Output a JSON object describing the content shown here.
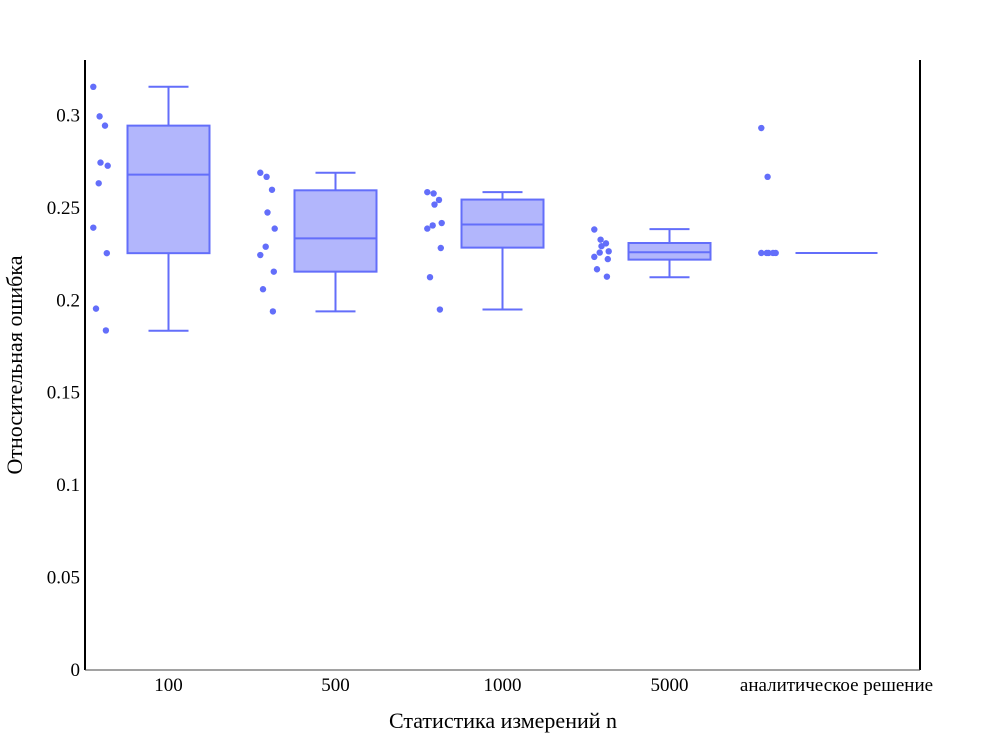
{
  "chart_data": {
    "type": "box",
    "title": "",
    "xlabel": "Статистика измерений n",
    "ylabel": "Относительная ошибка",
    "ylim": [
      0,
      0.33
    ],
    "yticks": [
      0,
      0.05,
      0.1,
      0.15,
      0.2,
      0.25,
      0.3
    ],
    "ytick_labels": [
      "0",
      "0.05",
      "0.1",
      "0.15",
      "0.2",
      "0.25",
      "0.3"
    ],
    "grid": false,
    "legend": "none",
    "box_color": "#636efa",
    "box_fill": "#b2b6fc",
    "categories": [
      "100",
      "500",
      "1000",
      "5000",
      "аналитическое решение"
    ],
    "boxes": [
      {
        "category": "100",
        "min": 0.1835,
        "q1": 0.2255,
        "median": 0.268,
        "q3": 0.2945,
        "max": 0.3155,
        "points": [
          0.3155,
          0.2995,
          0.2945,
          0.2745,
          0.2728,
          0.2633,
          0.2393,
          0.2255,
          0.1955,
          0.1837
        ]
      },
      {
        "category": "500",
        "min": 0.194,
        "q1": 0.2155,
        "median": 0.2335,
        "q3": 0.2595,
        "max": 0.269,
        "points": [
          0.269,
          0.2668,
          0.2598,
          0.2475,
          0.2388,
          0.229,
          0.2245,
          0.2155,
          0.206,
          0.194
        ]
      },
      {
        "category": "1000",
        "min": 0.195,
        "q1": 0.2285,
        "median": 0.241,
        "q3": 0.2545,
        "max": 0.2585,
        "points": [
          0.2585,
          0.2578,
          0.2543,
          0.2518,
          0.2418,
          0.2405,
          0.2388,
          0.2283,
          0.2125,
          0.195
        ]
      },
      {
        "category": "5000",
        "min": 0.2125,
        "q1": 0.222,
        "median": 0.226,
        "q3": 0.231,
        "max": 0.2385,
        "points": [
          0.2383,
          0.2328,
          0.2308,
          0.2293,
          0.2265,
          0.2258,
          0.2235,
          0.2223,
          0.2168,
          0.2128
        ]
      },
      {
        "category": "аналитическое решение",
        "min": 0.2256,
        "q1": 0.2256,
        "median": 0.2256,
        "q3": 0.2256,
        "max": 0.2256,
        "points": [
          0.2932,
          0.2668,
          0.2256,
          0.2256,
          0.2256,
          0.2256,
          0.2256
        ]
      }
    ]
  }
}
